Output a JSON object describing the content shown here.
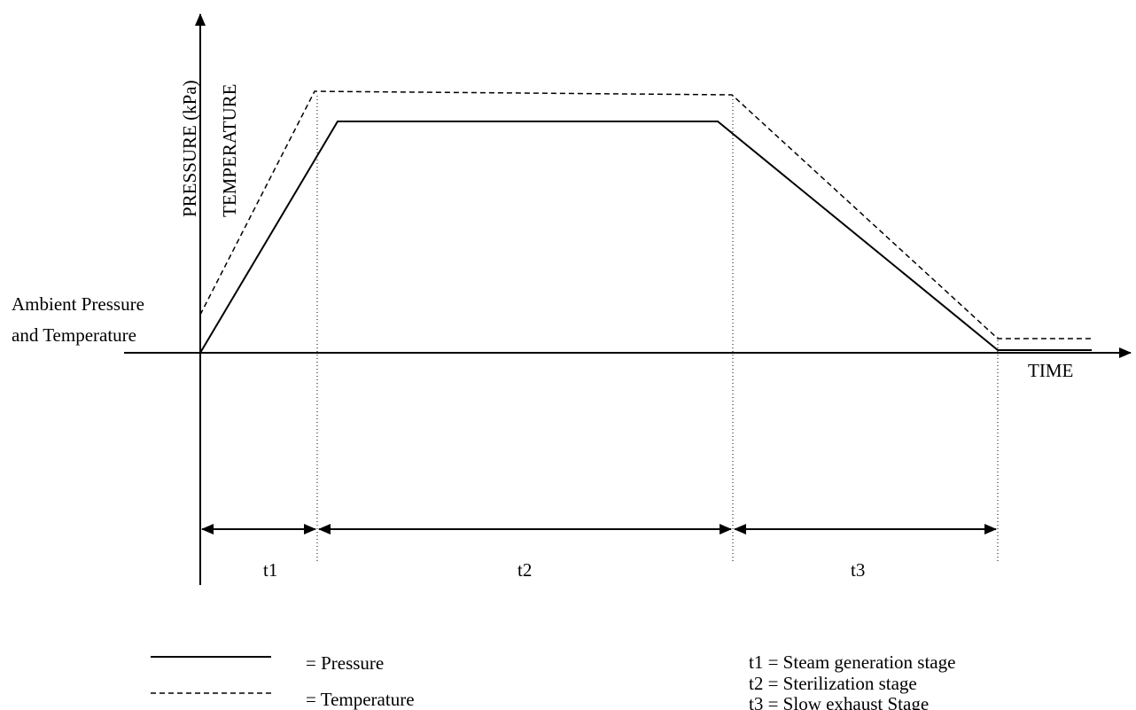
{
  "chart_data": {
    "type": "line",
    "xlabel": "TIME",
    "ylabel_line1": "PRESSURE (kPa)",
    "ylabel_line2": "TEMPERATURE",
    "ambient_label_line1": "Ambient Pressure",
    "ambient_label_line2": "and Temperature",
    "stages": [
      "t1",
      "t2",
      "t3"
    ],
    "series": [
      {
        "name": "Pressure",
        "style": "solid"
      },
      {
        "name": "Temperature",
        "style": "dashed"
      }
    ]
  },
  "legend": {
    "pressure": "=  Pressure",
    "temperature": "=  Temperature"
  },
  "stage_notes": [
    "t1 = Steam generation stage",
    "t2 = Sterilization stage",
    "t3 = Slow exhaust Stage"
  ],
  "colors": {
    "line": "#000000"
  }
}
